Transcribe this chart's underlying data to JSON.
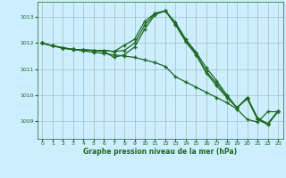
{
  "title": "Graphe pression niveau de la mer (hPa)",
  "bg_color": "#cceeff",
  "plot_bg_color": "#cceeff",
  "grid_color": "#aabbbb",
  "line_color": "#1a6b1a",
  "xlim": [
    -0.5,
    23.5
  ],
  "ylim": [
    1008.3,
    1013.6
  ],
  "yticks": [
    1009,
    1010,
    1011,
    1012,
    1013
  ],
  "xticks": [
    0,
    1,
    2,
    3,
    4,
    5,
    6,
    7,
    8,
    9,
    10,
    11,
    12,
    13,
    14,
    15,
    16,
    17,
    18,
    19,
    20,
    21,
    22,
    23
  ],
  "series": [
    [
      1012.0,
      1011.9,
      1011.8,
      1011.75,
      1011.7,
      1011.65,
      1011.6,
      1011.55,
      1011.5,
      1011.45,
      1011.35,
      1011.25,
      1011.1,
      1010.7,
      1010.5,
      1010.3,
      1010.1,
      1009.9,
      1009.7,
      1009.45,
      1009.05,
      1008.95,
      1009.35,
      1009.35
    ],
    [
      1012.0,
      1011.9,
      1011.82,
      1011.76,
      1011.74,
      1011.72,
      1011.68,
      1011.45,
      1011.55,
      1011.85,
      1012.55,
      1013.1,
      1013.25,
      1012.7,
      1012.05,
      1011.55,
      1010.85,
      1010.35,
      1009.9,
      1009.5,
      1009.85,
      1009.05,
      1008.85,
      1009.35
    ],
    [
      1012.0,
      1011.9,
      1011.82,
      1011.76,
      1011.74,
      1011.72,
      1011.72,
      1011.68,
      1011.72,
      1012.0,
      1012.7,
      1013.15,
      1013.25,
      1012.75,
      1012.1,
      1011.6,
      1010.9,
      1010.45,
      1009.95,
      1009.5,
      1009.9,
      1009.1,
      1008.88,
      1009.38
    ],
    [
      1012.0,
      1011.9,
      1011.82,
      1011.76,
      1011.74,
      1011.72,
      1011.72,
      1011.68,
      1011.92,
      1012.15,
      1012.85,
      1013.15,
      1013.25,
      1012.8,
      1012.15,
      1011.65,
      1011.05,
      1010.55,
      1010.0,
      1009.5,
      1009.9,
      1009.1,
      1008.88,
      1009.38
    ]
  ]
}
